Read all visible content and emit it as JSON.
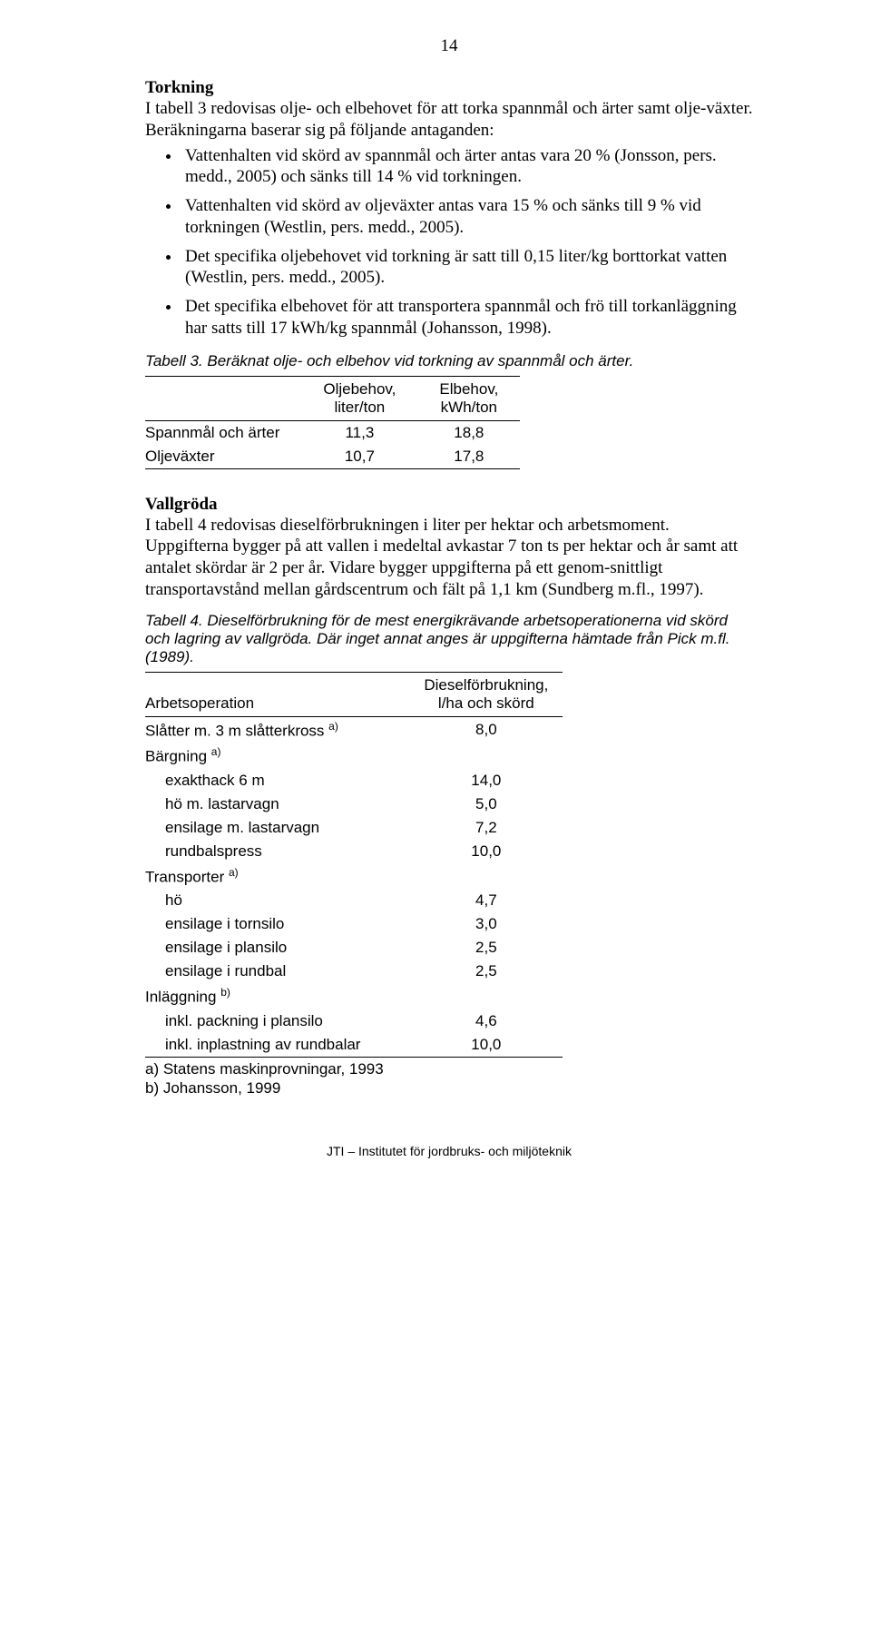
{
  "page_number": "14",
  "torkning": {
    "heading": "Torkning",
    "intro": "I tabell 3 redovisas olje- och elbehovet för att torka spannmål och ärter samt olje-växter. Beräkningarna baserar sig på följande antaganden:",
    "bullets": [
      "Vattenhalten vid skörd av spannmål och ärter antas vara 20 % (Jonsson, pers. medd., 2005) och sänks till 14 % vid torkningen.",
      "Vattenhalten vid skörd av oljeväxter antas vara 15 % och sänks till 9 % vid torkningen (Westlin, pers. medd., 2005).",
      "Det specifika oljebehovet vid torkning är satt till 0,15 liter/kg borttorkat vatten (Westlin, pers. medd., 2005).",
      "Det specifika elbehovet för att transportera spannmål och frö till torkanläggning har satts till 17 kWh/kg spannmål (Johansson, 1998)."
    ]
  },
  "table3": {
    "caption": "Tabell 3. Beräknat olje- och elbehov vid torkning av spannmål och ärter.",
    "col1": "Oljebehov,",
    "col1b": "liter/ton",
    "col2": "Elbehov,",
    "col2b": "kWh/ton",
    "rows": [
      {
        "label": "Spannmål och ärter",
        "v1": "11,3",
        "v2": "18,8"
      },
      {
        "label": "Oljeväxter",
        "v1": "10,7",
        "v2": "17,8"
      }
    ]
  },
  "vallgroda": {
    "heading": "Vallgröda",
    "text": "I tabell 4 redovisas dieselförbrukningen i liter per hektar och arbetsmoment. Uppgifterna bygger på att vallen i medeltal avkastar 7 ton ts per hektar och år samt att antalet skördar är 2 per år. Vidare bygger uppgifterna på ett genom-snittligt transportavstånd mellan gårdscentrum och fält på 1,1 km (Sundberg m.fl., 1997)."
  },
  "table4": {
    "caption": "Tabell 4. Dieselförbrukning för de mest energikrävande arbetsoperationerna vid skörd och lagring av vallgröda. Där inget annat anges är uppgifterna hämtade från Pick m.fl. (1989).",
    "col_left": "Arbetsoperation",
    "col_right1": "Dieselförbrukning,",
    "col_right2": "l/ha och skörd",
    "rows": [
      {
        "label": "Slåtter m. 3 m slåtterkross ",
        "sup": "a)",
        "indent": false,
        "value": "8,0"
      },
      {
        "label": "Bärgning ",
        "sup": "a)",
        "indent": false,
        "value": ""
      },
      {
        "label": "exakthack 6 m",
        "sup": "",
        "indent": true,
        "value": "14,0"
      },
      {
        "label": "hö m. lastarvagn",
        "sup": "",
        "indent": true,
        "value": "5,0"
      },
      {
        "label": "ensilage m. lastarvagn",
        "sup": "",
        "indent": true,
        "value": "7,2"
      },
      {
        "label": "rundbalspress",
        "sup": "",
        "indent": true,
        "value": "10,0"
      },
      {
        "label": "Transporter ",
        "sup": "a)",
        "indent": false,
        "value": ""
      },
      {
        "label": "hö",
        "sup": "",
        "indent": true,
        "value": "4,7"
      },
      {
        "label": "ensilage i tornsilo",
        "sup": "",
        "indent": true,
        "value": "3,0"
      },
      {
        "label": "ensilage i plansilo",
        "sup": "",
        "indent": true,
        "value": "2,5"
      },
      {
        "label": "ensilage i rundbal",
        "sup": "",
        "indent": true,
        "value": "2,5"
      },
      {
        "label": "Inläggning ",
        "sup": "b)",
        "indent": false,
        "value": ""
      },
      {
        "label": "inkl. packning i plansilo",
        "sup": "",
        "indent": true,
        "value": "4,6"
      },
      {
        "label": "inkl. inplastning av rundbalar",
        "sup": "",
        "indent": true,
        "value": "10,0"
      }
    ],
    "note_a": "a) Statens maskinprovningar, 1993",
    "note_b": "b) Johansson, 1999"
  },
  "footer": "JTI – Institutet för jordbruks- och miljöteknik"
}
